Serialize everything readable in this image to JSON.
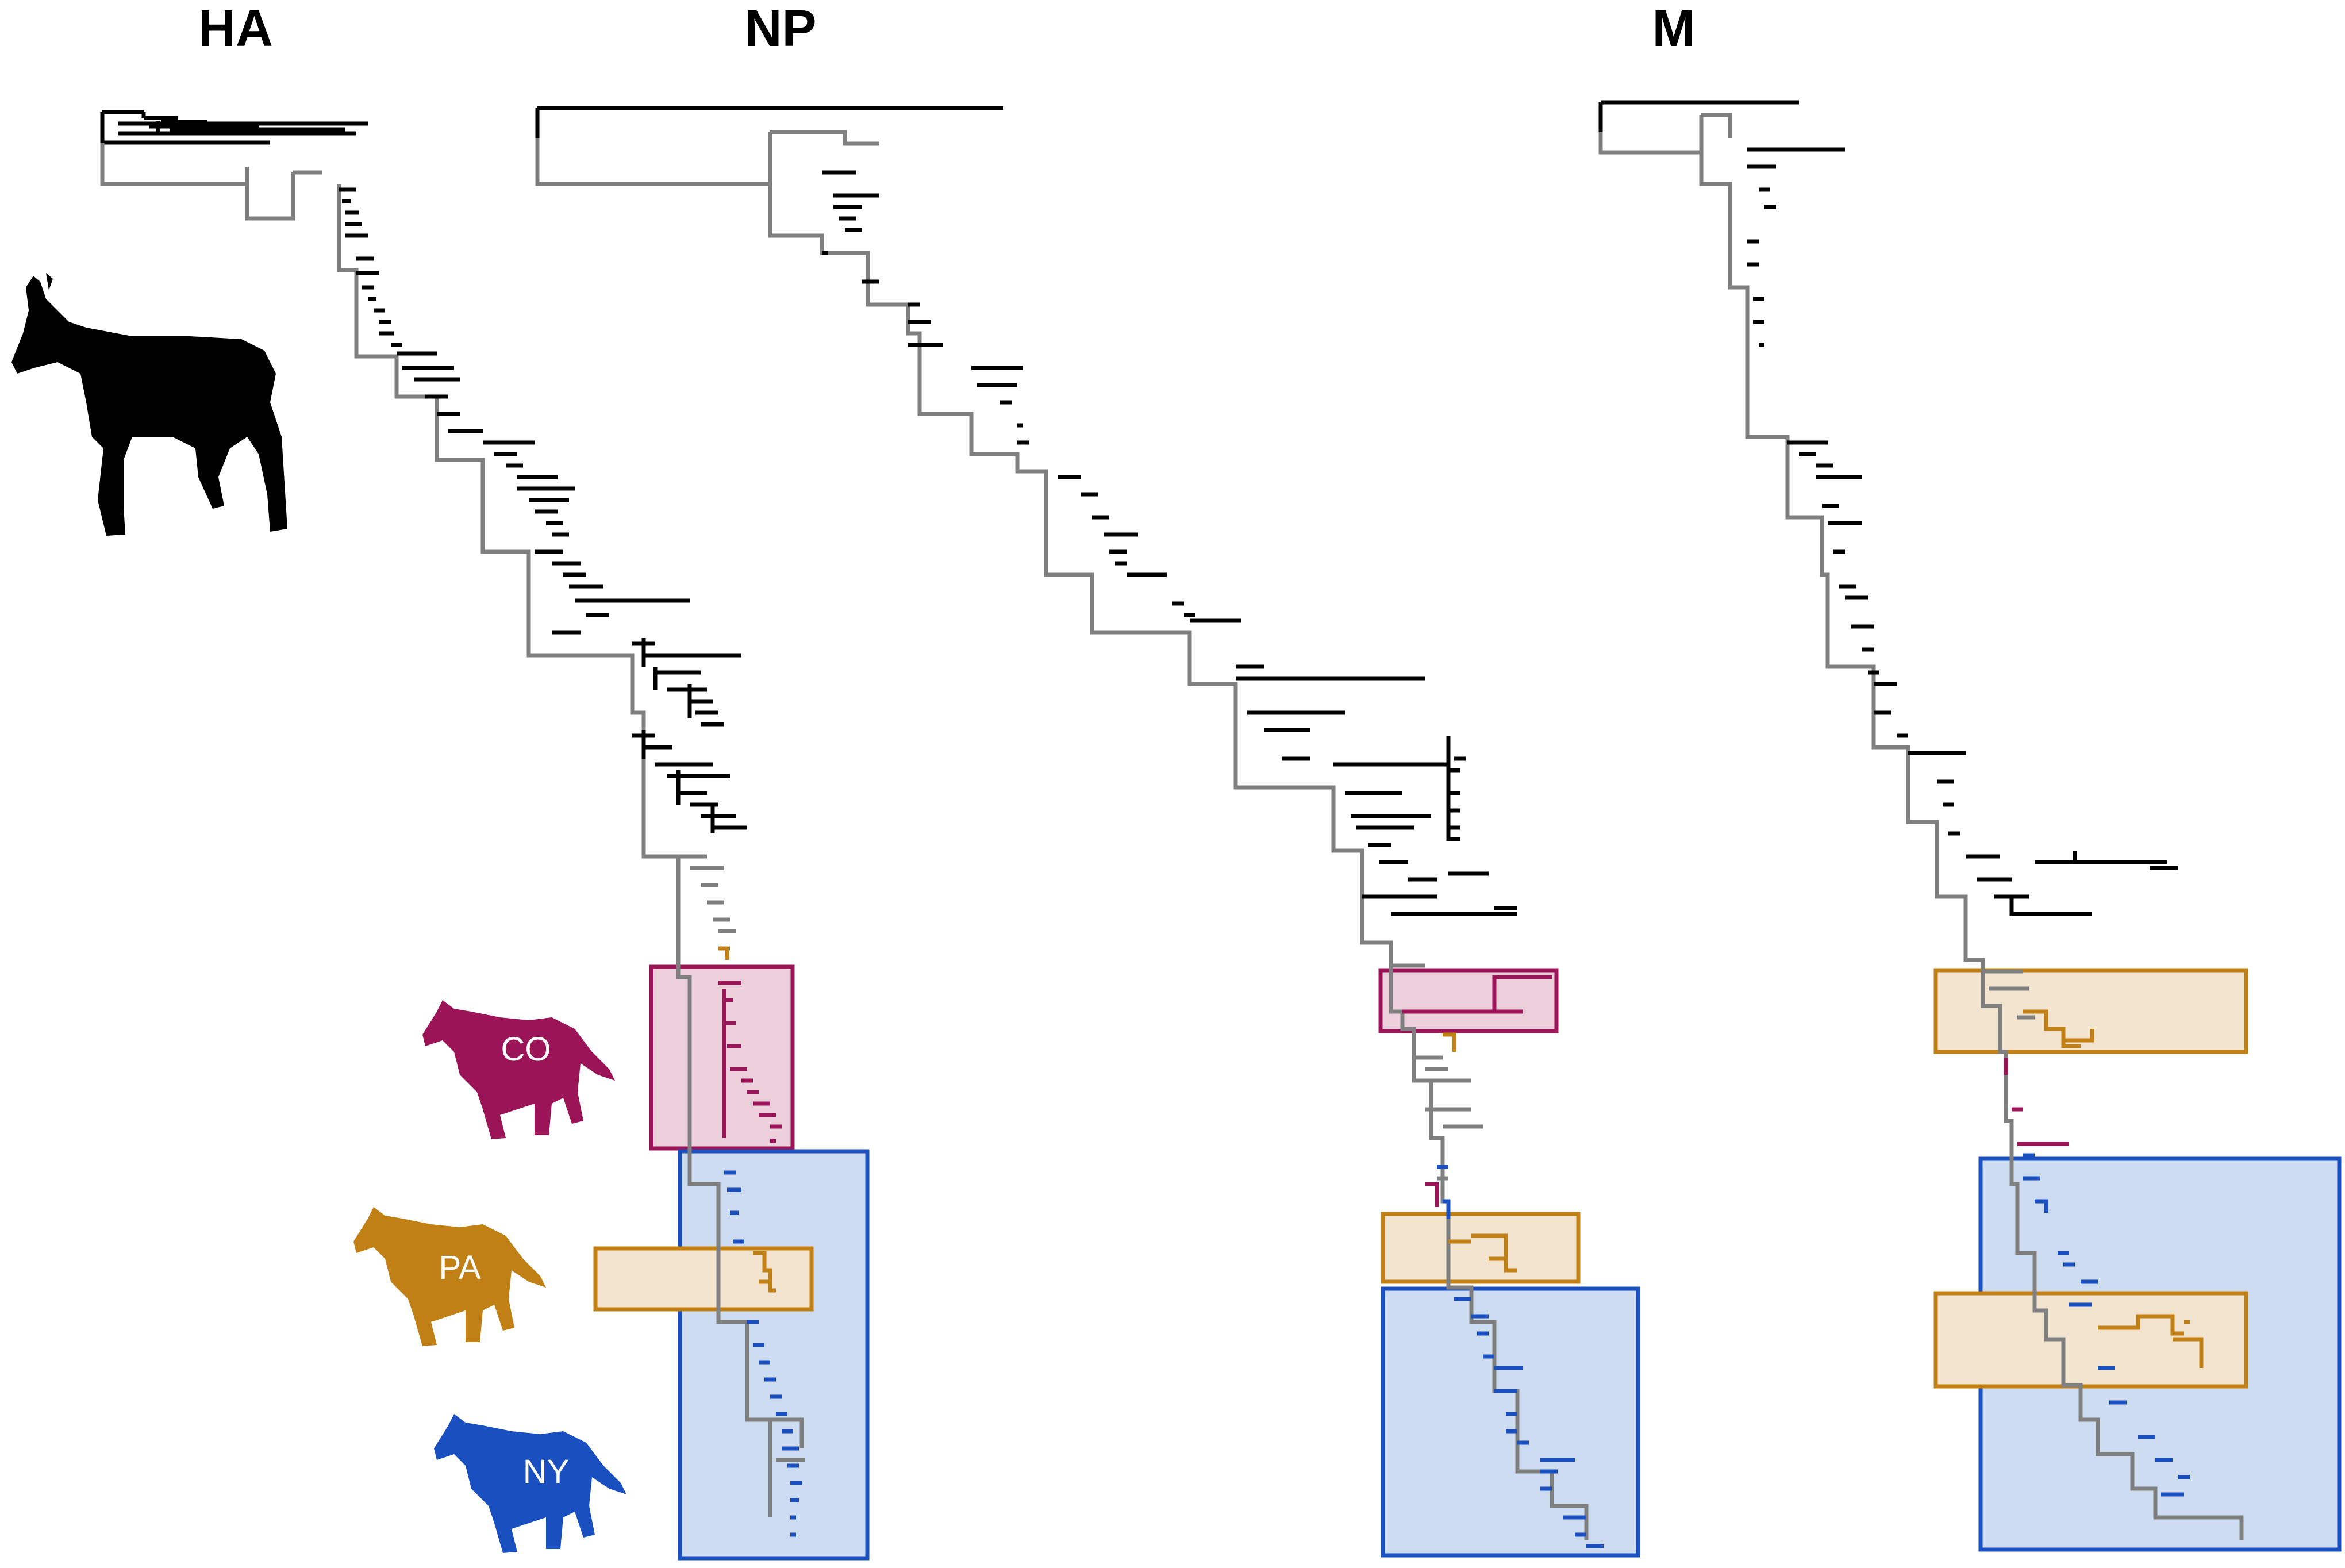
{
  "panels": [
    {
      "title": "HA"
    },
    {
      "title": "NP"
    },
    {
      "title": "M"
    }
  ],
  "hosts": [
    {
      "label": "",
      "species": "horse",
      "color": "#000000"
    },
    {
      "label": "CO",
      "species": "dog",
      "color": "#9b1457"
    },
    {
      "label": "PA",
      "species": "dog",
      "color": "#c08015"
    },
    {
      "label": "NY",
      "species": "dog",
      "color": "#1a4fc0"
    }
  ],
  "colors": {
    "equine_branch": "#000000",
    "backbone": "#7f7f7f",
    "CO": "#9b1457",
    "PA": "#c08015",
    "NY": "#1a4fc0",
    "CO_box_fill": "#ecd0dc",
    "PA_box_fill": "#f2e4cf",
    "NY_box_fill": "#cedcf2"
  },
  "clade_boxes": {
    "HA": [
      "CO",
      "NY",
      "PA"
    ],
    "NP": [
      "CO",
      "PA",
      "NY"
    ],
    "M": [
      "PA",
      "NY",
      "PA"
    ]
  }
}
